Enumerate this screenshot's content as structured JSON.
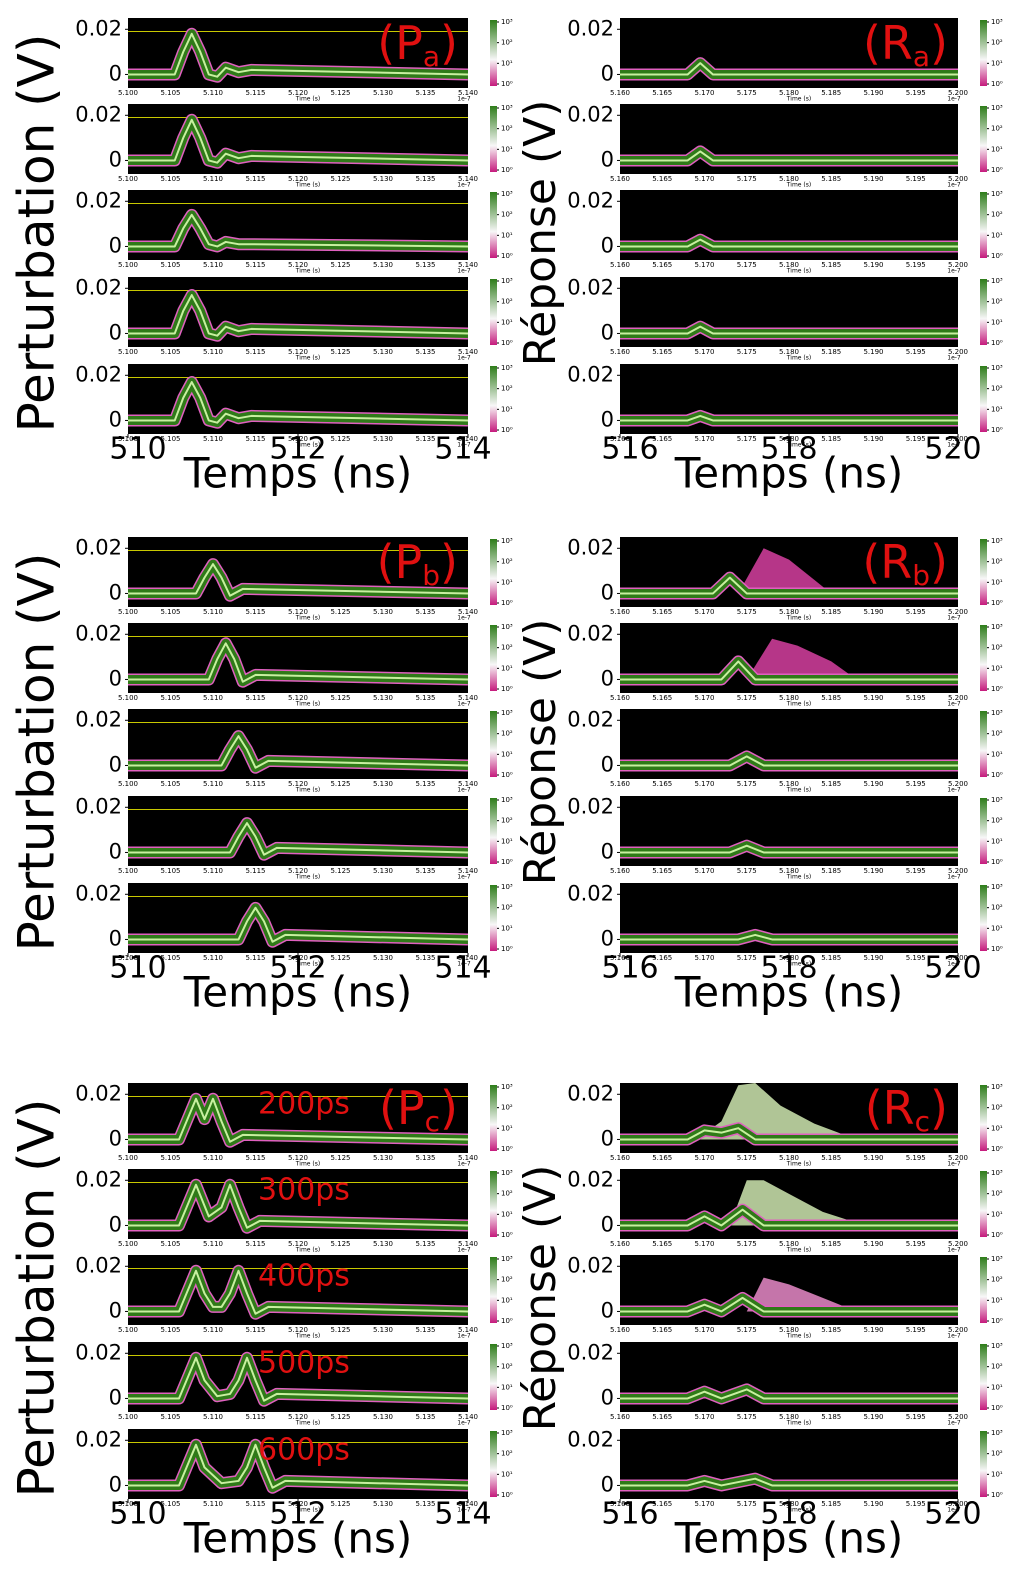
{
  "chart_data": [
    {
      "type": "line",
      "tag": [
        "(P",
        "a",
        ")"
      ],
      "ylabel": "Perturbation (V)",
      "xlabel": "Temps (ns)",
      "xlim": [
        510,
        514
      ],
      "xticks": [
        510,
        512,
        514
      ],
      "ylim": [
        -0.006,
        0.025
      ],
      "yticks": [
        0,
        0.02
      ],
      "ref_line": 0.019,
      "inner_xticks": [
        "5.100",
        "5.105",
        "5.110",
        "5.115",
        "5.120",
        "5.125",
        "5.130",
        "5.135",
        "5.140"
      ],
      "inner_xlabel": "Time (s)",
      "inner_xunit": "1e-7",
      "colorbar_ticks": [
        {
          "value": 0,
          "label": "10⁰"
        },
        {
          "value": 1,
          "label": "10¹"
        },
        {
          "value": 2,
          "label": "10²"
        },
        {
          "value": 3,
          "label": "10³"
        }
      ],
      "panels": [
        {
          "x": [
            510,
            510.55,
            510.65,
            510.75,
            510.85,
            510.95,
            511.05,
            511.15,
            511.3,
            511.45,
            514
          ],
          "values": [
            0,
            0,
            0.01,
            0.018,
            0.01,
            0,
            -0.001,
            0.003,
            0.001,
            0.002,
            0
          ]
        },
        {
          "x": [
            510,
            510.55,
            510.65,
            510.75,
            510.85,
            510.95,
            511.05,
            511.15,
            511.3,
            511.45,
            514
          ],
          "values": [
            0,
            0,
            0.01,
            0.018,
            0.01,
            0,
            -0.001,
            0.003,
            0.001,
            0.002,
            0
          ]
        },
        {
          "x": [
            510,
            510.55,
            510.65,
            510.75,
            510.85,
            510.95,
            511.05,
            511.15,
            511.3,
            511.45,
            514
          ],
          "values": [
            0,
            0,
            0.008,
            0.014,
            0.008,
            0.001,
            0,
            0.002,
            0.001,
            0.001,
            0
          ]
        },
        {
          "x": [
            510,
            510.55,
            510.65,
            510.75,
            510.85,
            510.95,
            511.05,
            511.15,
            511.3,
            511.45,
            514
          ],
          "values": [
            0,
            0,
            0.01,
            0.017,
            0.01,
            0,
            -0.001,
            0.003,
            0.001,
            0.002,
            0
          ]
        },
        {
          "x": [
            510,
            510.55,
            510.65,
            510.75,
            510.85,
            510.95,
            511.05,
            511.15,
            511.3,
            511.45,
            514
          ],
          "values": [
            0,
            0,
            0.01,
            0.017,
            0.01,
            0,
            -0.001,
            0.003,
            0.001,
            0.002,
            0
          ]
        }
      ]
    },
    {
      "type": "line",
      "tag": [
        "(R",
        "a",
        ")"
      ],
      "ylabel": "Réponse (V)",
      "xlabel": "Temps (ns)",
      "xlim": [
        516,
        520
      ],
      "xticks": [
        516,
        518,
        520
      ],
      "ylim": [
        -0.006,
        0.025
      ],
      "yticks": [
        0,
        0.02
      ],
      "inner_xticks": [
        "5.160",
        "5.165",
        "5.170",
        "5.175",
        "5.180",
        "5.185",
        "5.190",
        "5.195",
        "5.200"
      ],
      "inner_xlabel": "Time (s)",
      "inner_xunit": "1e-7",
      "colorbar_ticks": [
        {
          "value": 0,
          "label": "10⁰"
        },
        {
          "value": 1,
          "label": "10¹"
        },
        {
          "value": 2,
          "label": "10²"
        },
        {
          "value": 3,
          "label": "10³"
        }
      ],
      "panels": [
        {
          "x": [
            516,
            516.8,
            516.95,
            517.1,
            517.25,
            520
          ],
          "values": [
            0,
            0,
            0.005,
            0,
            0,
            0
          ]
        },
        {
          "x": [
            516,
            516.8,
            516.95,
            517.1,
            517.25,
            520
          ],
          "values": [
            0,
            0,
            0.004,
            0,
            0,
            0
          ]
        },
        {
          "x": [
            516,
            516.8,
            516.95,
            517.1,
            517.25,
            520
          ],
          "values": [
            0,
            0,
            0.003,
            0,
            0,
            0
          ]
        },
        {
          "x": [
            516,
            516.8,
            516.95,
            517.1,
            517.25,
            520
          ],
          "values": [
            0,
            0,
            0.003,
            0,
            0,
            0
          ]
        },
        {
          "x": [
            516,
            516.8,
            516.95,
            517.1,
            517.25,
            520
          ],
          "values": [
            0,
            0,
            0.002,
            0,
            0,
            0
          ]
        }
      ]
    },
    {
      "type": "line",
      "tag": [
        "(P",
        "b",
        ")"
      ],
      "ylabel": "Perturbation (V)",
      "xlabel": "Temps (ns)",
      "xlim": [
        510,
        514
      ],
      "xticks": [
        510,
        512,
        514
      ],
      "ylim": [
        -0.006,
        0.025
      ],
      "yticks": [
        0,
        0.02
      ],
      "ref_line": 0.019,
      "inner_xticks": [
        "5.100",
        "5.105",
        "5.110",
        "5.115",
        "5.120",
        "5.125",
        "5.130",
        "5.135",
        "5.140"
      ],
      "inner_xlabel": "Time (s)",
      "inner_xunit": "1e-7",
      "colorbar_ticks": [
        {
          "value": 0,
          "label": "10⁰"
        },
        {
          "value": 1,
          "label": "10¹"
        },
        {
          "value": 2,
          "label": "10²"
        },
        {
          "value": 3,
          "label": "10³"
        }
      ],
      "panels": [
        {
          "x": [
            510,
            510.8,
            510.9,
            511.0,
            511.1,
            511.2,
            511.35,
            514
          ],
          "values": [
            0,
            0,
            0.007,
            0.013,
            0.007,
            -0.001,
            0.002,
            0
          ]
        },
        {
          "x": [
            510,
            510.95,
            511.05,
            511.15,
            511.25,
            511.35,
            511.5,
            514
          ],
          "values": [
            0,
            0,
            0.009,
            0.016,
            0.009,
            -0.001,
            0.002,
            0
          ]
        },
        {
          "x": [
            510,
            511.1,
            511.2,
            511.3,
            511.4,
            511.5,
            511.65,
            514
          ],
          "values": [
            0,
            0,
            0.007,
            0.013,
            0.007,
            -0.001,
            0.002,
            0
          ]
        },
        {
          "x": [
            510,
            511.2,
            511.3,
            511.4,
            511.5,
            511.6,
            511.75,
            514
          ],
          "values": [
            0,
            0,
            0.007,
            0.013,
            0.007,
            -0.001,
            0.002,
            0
          ]
        },
        {
          "x": [
            510,
            511.3,
            511.4,
            511.5,
            511.6,
            511.7,
            511.85,
            514
          ],
          "values": [
            0,
            0,
            0.008,
            0.014,
            0.008,
            -0.001,
            0.002,
            0
          ]
        }
      ]
    },
    {
      "type": "line",
      "tag": [
        "(R",
        "b",
        ")"
      ],
      "ylabel": "Réponse (V)",
      "xlabel": "Temps (ns)",
      "xlim": [
        516,
        520
      ],
      "xticks": [
        516,
        518,
        520
      ],
      "ylim": [
        -0.006,
        0.025
      ],
      "yticks": [
        0,
        0.02
      ],
      "inner_xticks": [
        "5.160",
        "5.165",
        "5.170",
        "5.175",
        "5.180",
        "5.185",
        "5.190",
        "5.195",
        "5.200"
      ],
      "inner_xlabel": "Time (s)",
      "inner_xunit": "1e-7",
      "colorbar_ticks": [
        {
          "value": 0,
          "label": "10⁰"
        },
        {
          "value": 1,
          "label": "10¹"
        },
        {
          "value": 2,
          "label": "10²"
        },
        {
          "value": 3,
          "label": "10³"
        }
      ],
      "panels": [
        {
          "x": [
            516,
            517.1,
            517.3,
            517.5,
            520
          ],
          "values": [
            0,
            0,
            0.007,
            0,
            0
          ],
          "burst": {
            "color": "#d63fa0",
            "x": [
              517.4,
              517.7,
              518.0,
              518.3,
              518.5
            ],
            "values": [
              0,
              0.02,
              0.015,
              0.006,
              0
            ]
          }
        },
        {
          "x": [
            516,
            517.2,
            517.4,
            517.6,
            520
          ],
          "values": [
            0,
            0,
            0.008,
            0,
            0
          ],
          "burst": {
            "color": "#d63fa0",
            "x": [
              517.5,
              517.8,
              518.1,
              518.5,
              518.8
            ],
            "values": [
              0,
              0.018,
              0.015,
              0.008,
              0
            ]
          }
        },
        {
          "x": [
            516,
            517.3,
            517.5,
            517.7,
            520
          ],
          "values": [
            0,
            0,
            0.004,
            0,
            0
          ]
        },
        {
          "x": [
            516,
            517.3,
            517.5,
            517.7,
            520
          ],
          "values": [
            0,
            0,
            0.003,
            0,
            0
          ]
        },
        {
          "x": [
            516,
            517.4,
            517.6,
            517.8,
            520
          ],
          "values": [
            0,
            0,
            0.002,
            0,
            0
          ]
        }
      ]
    },
    {
      "type": "line",
      "tag": [
        "(P",
        "c",
        ")"
      ],
      "ylabel": "Perturbation (V)",
      "xlabel": "Temps (ns)",
      "xlim": [
        510,
        514
      ],
      "xticks": [
        510,
        512,
        514
      ],
      "ylim": [
        -0.006,
        0.025
      ],
      "yticks": [
        0,
        0.02
      ],
      "ref_line": 0.019,
      "inner_xticks": [
        "5.100",
        "5.105",
        "5.110",
        "5.115",
        "5.120",
        "5.125",
        "5.130",
        "5.135",
        "5.140"
      ],
      "inner_xlabel": "Time (s)",
      "inner_xunit": "1e-7",
      "colorbar_ticks": [
        {
          "value": 0,
          "label": "10⁰"
        },
        {
          "value": 1,
          "label": "10¹"
        },
        {
          "value": 2,
          "label": "10²"
        },
        {
          "value": 3,
          "label": "10³"
        }
      ],
      "panels": [
        {
          "note": "200ps",
          "x": [
            510,
            510.6,
            510.7,
            510.8,
            510.9,
            511.0,
            511.1,
            511.2,
            511.35,
            514
          ],
          "values": [
            0,
            0,
            0.009,
            0.018,
            0.009,
            0.018,
            0.008,
            -0.001,
            0.002,
            0
          ]
        },
        {
          "note": "300ps",
          "x": [
            510,
            510.6,
            510.7,
            510.8,
            510.95,
            511.1,
            511.2,
            511.3,
            511.4,
            511.55,
            514
          ],
          "values": [
            0,
            0,
            0.009,
            0.018,
            0.004,
            0.008,
            0.018,
            0.008,
            -0.001,
            0.002,
            0
          ]
        },
        {
          "note": "400ps",
          "x": [
            510,
            510.6,
            510.7,
            510.8,
            510.9,
            511.0,
            511.1,
            511.2,
            511.3,
            511.4,
            511.5,
            511.65,
            514
          ],
          "values": [
            0,
            0,
            0.009,
            0.018,
            0.008,
            0.002,
            0.002,
            0.008,
            0.018,
            0.008,
            -0.001,
            0.002,
            0
          ]
        },
        {
          "note": "500ps",
          "x": [
            510,
            510.6,
            510.7,
            510.8,
            510.9,
            511.05,
            511.2,
            511.3,
            511.4,
            511.5,
            511.6,
            511.75,
            514
          ],
          "values": [
            0,
            0,
            0.009,
            0.018,
            0.008,
            0.001,
            0.002,
            0.008,
            0.018,
            0.008,
            -0.001,
            0.002,
            0
          ]
        },
        {
          "note": "600ps",
          "x": [
            510,
            510.6,
            510.7,
            510.8,
            510.9,
            511.1,
            511.3,
            511.4,
            511.5,
            511.6,
            511.7,
            511.85,
            514
          ],
          "values": [
            0,
            0,
            0.009,
            0.018,
            0.008,
            0.001,
            0.002,
            0.008,
            0.018,
            0.008,
            -0.001,
            0.002,
            0
          ]
        }
      ]
    },
    {
      "type": "line",
      "tag": [
        "(R",
        "c",
        ")"
      ],
      "ylabel": "Réponse (V)",
      "xlabel": "Temps (ns)",
      "xlim": [
        516,
        520
      ],
      "xticks": [
        516,
        518,
        520
      ],
      "ylim": [
        -0.006,
        0.025
      ],
      "yticks": [
        0,
        0.02
      ],
      "inner_xticks": [
        "5.160",
        "5.165",
        "5.170",
        "5.175",
        "5.180",
        "5.185",
        "5.190",
        "5.195",
        "5.200"
      ],
      "inner_xlabel": "Time (s)",
      "inner_xunit": "1e-7",
      "colorbar_ticks": [
        {
          "value": 0,
          "label": "10⁰"
        },
        {
          "value": 1,
          "label": "10¹"
        },
        {
          "value": 2,
          "label": "10²"
        },
        {
          "value": 3,
          "label": "10³"
        }
      ],
      "panels": [
        {
          "x": [
            516,
            516.8,
            517.0,
            517.2,
            517.4,
            517.6,
            520
          ],
          "values": [
            0,
            0,
            0.004,
            0.003,
            0.005,
            0,
            0
          ],
          "burst": {
            "color": "#cfe8b0",
            "x": [
              516.9,
              517.2,
              517.4,
              517.6,
              517.9,
              518.3,
              518.8
            ],
            "values": [
              0,
              0.008,
              0.024,
              0.025,
              0.015,
              0.007,
              0
            ]
          }
        },
        {
          "x": [
            516,
            516.8,
            517.0,
            517.2,
            517.45,
            517.7,
            520
          ],
          "values": [
            0,
            0,
            0.004,
            0,
            0.007,
            0,
            0
          ],
          "burst": {
            "color": "#cfe8b0",
            "x": [
              517.3,
              517.5,
              517.7,
              518.0,
              518.4,
              518.9
            ],
            "values": [
              0,
              0.02,
              0.02,
              0.014,
              0.006,
              0
            ]
          }
        },
        {
          "x": [
            516,
            516.8,
            517.0,
            517.2,
            517.45,
            517.7,
            520
          ],
          "values": [
            0,
            0,
            0.003,
            0,
            0.006,
            0,
            0
          ],
          "burst": {
            "color": "#e88ac8",
            "x": [
              517.5,
              517.7,
              518.0,
              518.4,
              518.8
            ],
            "values": [
              0,
              0.015,
              0.012,
              0.006,
              0
            ]
          }
        },
        {
          "x": [
            516,
            516.8,
            517.0,
            517.2,
            517.5,
            517.7,
            520
          ],
          "values": [
            0,
            0,
            0.003,
            0,
            0.004,
            0,
            0
          ]
        },
        {
          "x": [
            516,
            516.8,
            517.0,
            517.2,
            517.6,
            517.8,
            520
          ],
          "values": [
            0,
            0,
            0.002,
            0,
            0.003,
            0,
            0
          ]
        }
      ]
    }
  ]
}
